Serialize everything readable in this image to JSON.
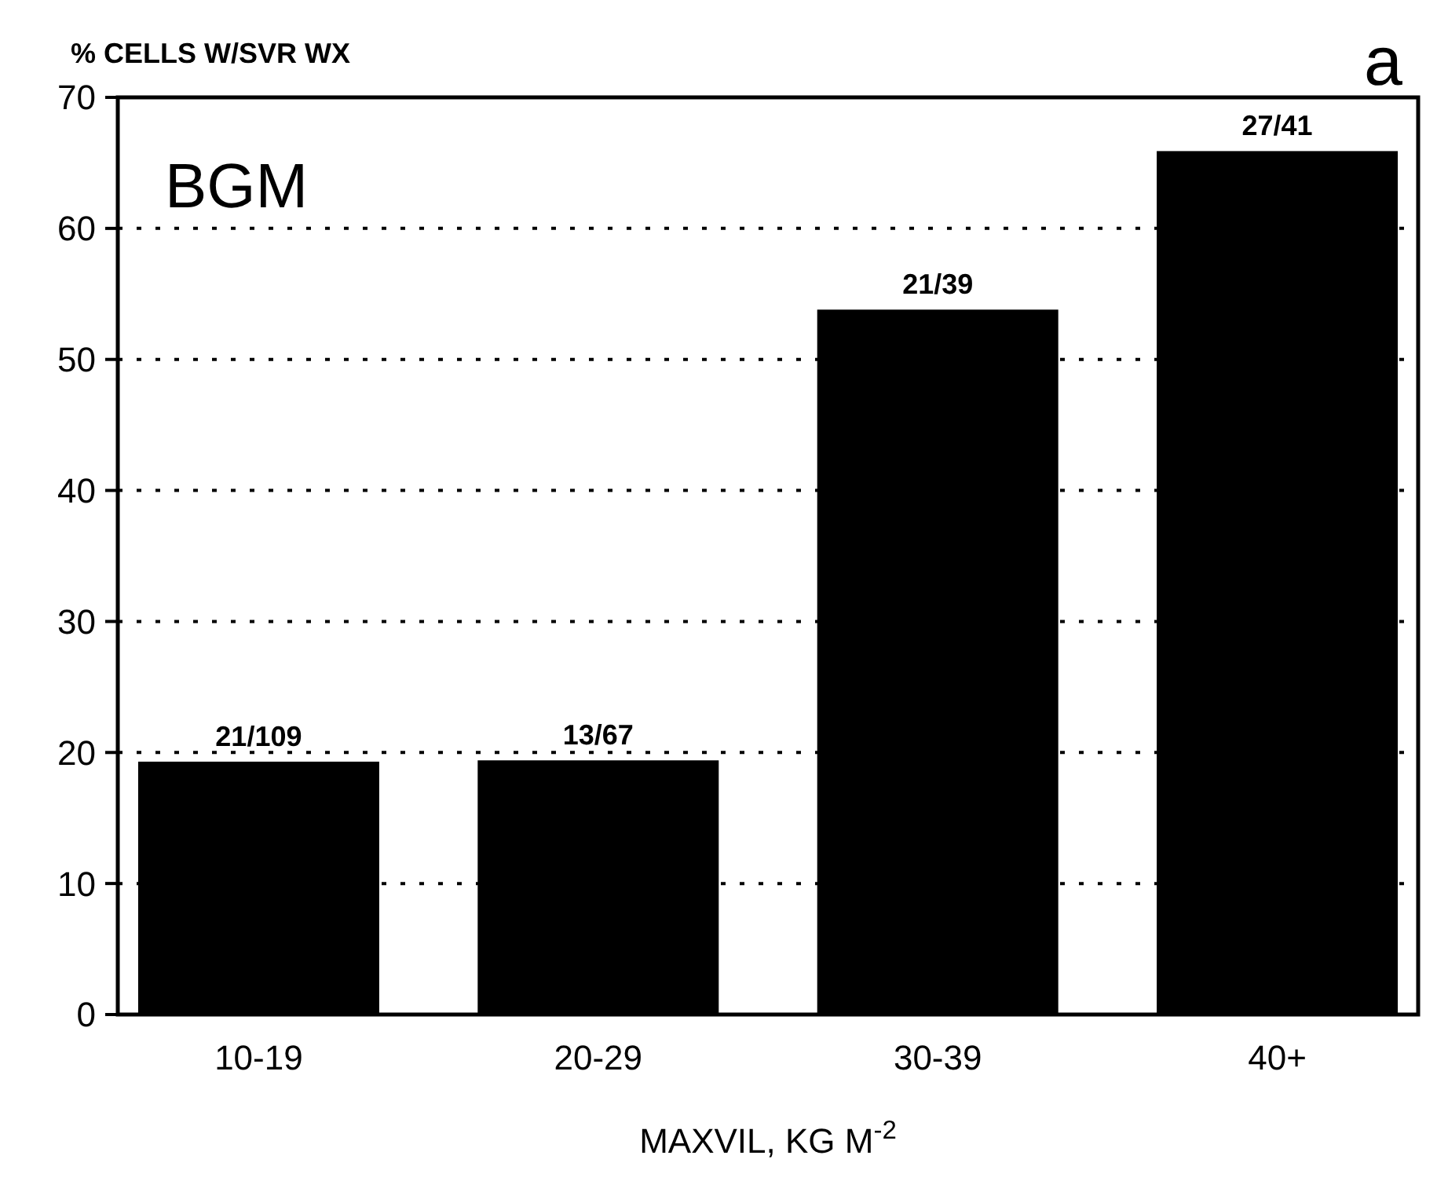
{
  "chart_data": {
    "type": "bar",
    "ylabel": "% CELLS W/SVR WX",
    "xlabel": "MAXVIL, KG M$^{-2}$",
    "categories": [
      "10-19",
      "20-29",
      "30-39",
      "40+"
    ],
    "values": [
      19.3,
      19.4,
      53.8,
      65.9
    ],
    "value_labels": [
      "21/109",
      "13/67",
      "21/39",
      "27/41"
    ],
    "color": "#000000",
    "ylim": [
      0,
      70
    ],
    "yticks": [
      0,
      10,
      20,
      30,
      40,
      50,
      60,
      70
    ],
    "grid": "y",
    "line_style": "dotted",
    "annotations": [
      "a",
      "BGM"
    ]
  }
}
